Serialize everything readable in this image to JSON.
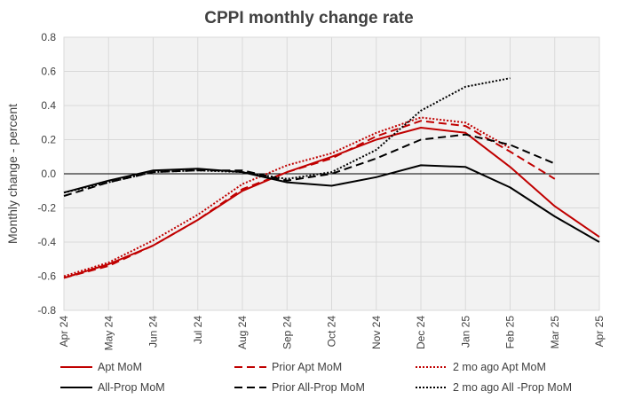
{
  "chart_data": {
    "type": "line",
    "title": "CPPI monthly change rate",
    "xlabel": "",
    "ylabel": "Monthly change - percent",
    "categories": [
      "Apr 24",
      "May 24",
      "Jun 24",
      "Jul 24",
      "Aug 24",
      "Sep 24",
      "Oct 24",
      "Nov 24",
      "Dec 24",
      "Jan 25",
      "Feb 25",
      "Mar 25",
      "Apr 25"
    ],
    "ylim": [
      -0.8,
      0.8
    ],
    "yticks": [
      -0.8,
      -0.6,
      -0.4,
      -0.2,
      0.0,
      0.2,
      0.4,
      0.6,
      0.8
    ],
    "ytick_labels": [
      "-0.8",
      "-0.6",
      "-0.4",
      "-0.2",
      "0.0",
      "0.2",
      "0.4",
      "0.6",
      "0.8"
    ],
    "legend_position": "bottom",
    "series": [
      {
        "name": "Apt MoM",
        "color": "#c00000",
        "dash": "solid",
        "values": [
          -0.61,
          -0.53,
          -0.42,
          -0.27,
          -0.1,
          0.01,
          0.1,
          0.2,
          0.27,
          0.24,
          0.04,
          -0.19,
          -0.37
        ]
      },
      {
        "name": "Prior Apt MoM",
        "color": "#c00000",
        "dash": "dashed",
        "values": [
          -0.61,
          -0.54,
          -0.42,
          -0.27,
          -0.09,
          0.01,
          0.09,
          0.22,
          0.31,
          0.28,
          0.13,
          -0.03,
          null
        ]
      },
      {
        "name": "2 mo ago Apt MoM",
        "color": "#c00000",
        "dash": "dotted",
        "values": [
          -0.6,
          -0.52,
          -0.39,
          -0.24,
          -0.06,
          0.05,
          0.12,
          0.24,
          0.33,
          0.3,
          0.15,
          null,
          null
        ]
      },
      {
        "name": "All-Prop MoM",
        "color": "#000000",
        "dash": "solid",
        "values": [
          -0.11,
          -0.04,
          0.02,
          0.03,
          0.01,
          -0.05,
          -0.07,
          -0.02,
          0.05,
          0.04,
          -0.08,
          -0.25,
          -0.4
        ]
      },
      {
        "name": "Prior All-Prop MoM",
        "color": "#000000",
        "dash": "dashed",
        "values": [
          -0.13,
          -0.05,
          0.01,
          0.02,
          0.02,
          -0.04,
          0.0,
          0.09,
          0.2,
          0.23,
          0.17,
          0.06,
          null
        ]
      },
      {
        "name": "2 mo ago All -Prop MoM",
        "color": "#000000",
        "dash": "dotted",
        "values": [
          -0.11,
          -0.05,
          0.01,
          0.02,
          0.01,
          -0.03,
          0.01,
          0.14,
          0.37,
          0.51,
          0.56,
          null,
          null
        ]
      }
    ]
  }
}
